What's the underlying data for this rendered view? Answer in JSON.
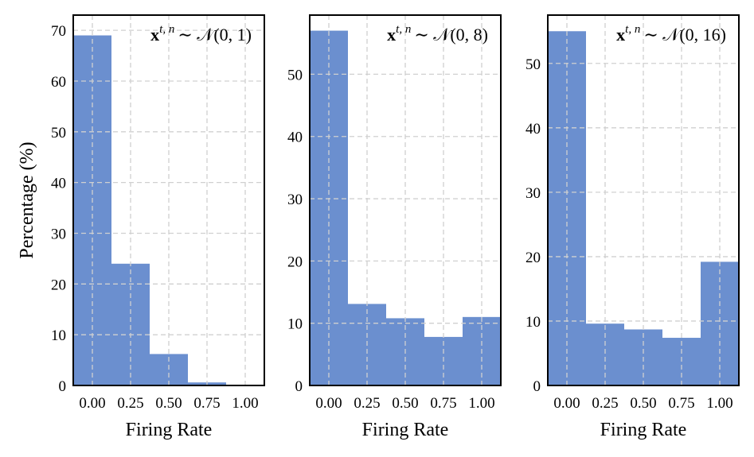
{
  "chart_data": [
    {
      "type": "bar",
      "title": "x^{t,n} ~ N(0, 1)",
      "title_parts": {
        "var": "x",
        "sup": "t, n",
        "dist": "∼ 𝒩(0, 1)"
      },
      "xlabel": "Firing Rate",
      "ylabel": "Percentage (%)",
      "categories": [
        "0.00",
        "0.25",
        "0.50",
        "0.75",
        "1.00"
      ],
      "values": [
        69.0,
        24.0,
        6.2,
        0.6,
        0.0
      ],
      "xlim": [
        -0.125,
        1.125
      ],
      "ylim": [
        0,
        73
      ],
      "yticks": [
        0,
        10,
        20,
        30,
        40,
        50,
        60,
        70
      ],
      "grid": true,
      "bar_color": "#6b8fcf"
    },
    {
      "type": "bar",
      "title": "x^{t,n} ~ N(0, 8)",
      "title_parts": {
        "var": "x",
        "sup": "t, n",
        "dist": "∼ 𝒩(0, 8)"
      },
      "xlabel": "Firing Rate",
      "ylabel": "",
      "categories": [
        "0.00",
        "0.25",
        "0.50",
        "0.75",
        "1.00"
      ],
      "values": [
        57.0,
        13.1,
        10.8,
        7.8,
        11.0
      ],
      "xlim": [
        -0.125,
        1.125
      ],
      "ylim": [
        0,
        59.5
      ],
      "yticks": [
        0,
        10,
        20,
        30,
        40,
        50
      ],
      "grid": true,
      "bar_color": "#6b8fcf"
    },
    {
      "type": "bar",
      "title": "x^{t,n} ~ N(0, 16)",
      "title_parts": {
        "var": "x",
        "sup": "t, n",
        "dist": "∼ 𝒩(0, 16)"
      },
      "xlabel": "Firing Rate",
      "ylabel": "",
      "categories": [
        "0.00",
        "0.25",
        "0.50",
        "0.75",
        "1.00"
      ],
      "values": [
        55.0,
        9.6,
        8.7,
        7.4,
        19.2
      ],
      "xlim": [
        -0.125,
        1.125
      ],
      "ylim": [
        0,
        57.5
      ],
      "yticks": [
        0,
        10,
        20,
        30,
        40,
        50
      ],
      "grid": true,
      "bar_color": "#6b8fcf"
    }
  ]
}
